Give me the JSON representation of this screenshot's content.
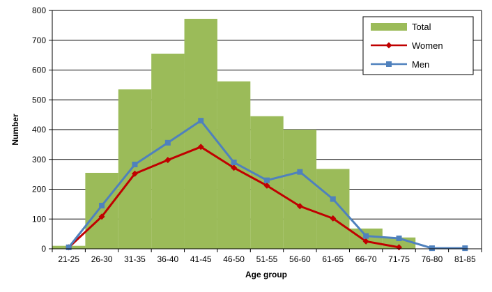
{
  "chart_data": {
    "type": "bar",
    "categories": [
      "21-25",
      "26-30",
      "31-35",
      "36-40",
      "41-45",
      "46-50",
      "51-55",
      "56-60",
      "61-65",
      "66-70",
      "71-75",
      "76-80",
      "81-85"
    ],
    "xlabel": "Age group",
    "ylabel": "Number",
    "ylim": [
      0,
      800
    ],
    "yticks": [
      0,
      100,
      200,
      300,
      400,
      500,
      600,
      700,
      800
    ],
    "grid": true,
    "legend_position": "top-right",
    "series": [
      {
        "name": "Total",
        "type": "bar",
        "color": "#9BBB59",
        "values": [
          10,
          255,
          535,
          655,
          772,
          562,
          445,
          400,
          268,
          68,
          38,
          null,
          null
        ]
      },
      {
        "name": "Women",
        "type": "line",
        "marker": "diamond",
        "color": "#C00000",
        "values": [
          5,
          108,
          252,
          298,
          342,
          272,
          212,
          143,
          102,
          25,
          5,
          null,
          null
        ]
      },
      {
        "name": "Men",
        "type": "line",
        "marker": "square",
        "color": "#4F81BD",
        "values": [
          5,
          145,
          283,
          356,
          430,
          290,
          230,
          258,
          167,
          43,
          35,
          2,
          2
        ]
      }
    ]
  }
}
